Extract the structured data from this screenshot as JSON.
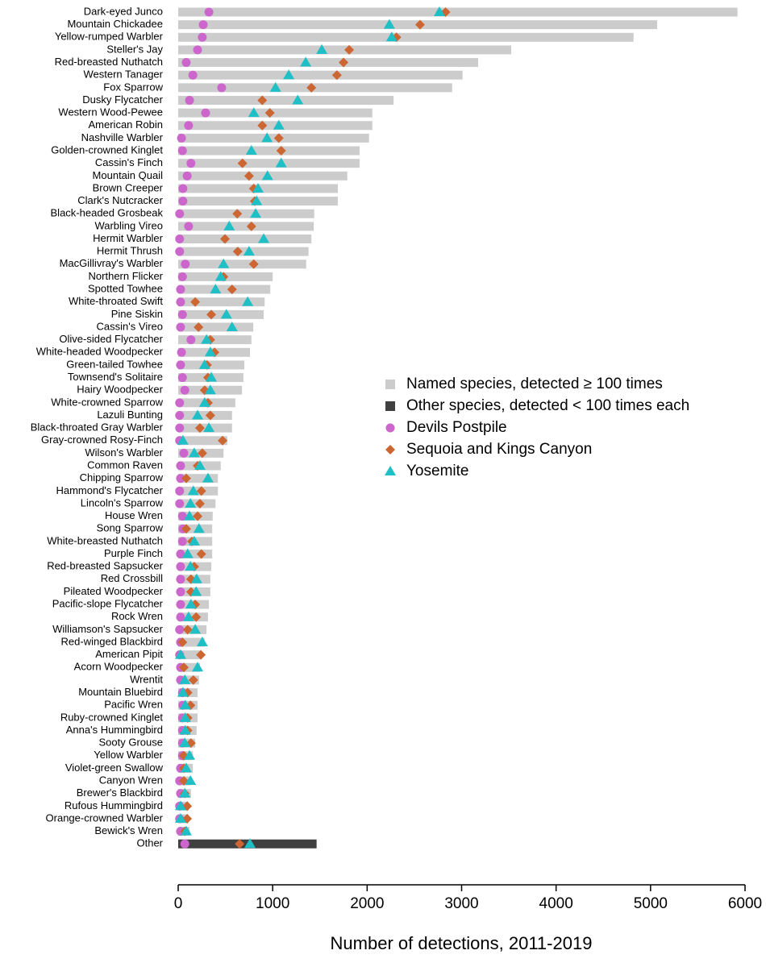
{
  "chart_data": {
    "type": "bar",
    "orientation": "horizontal",
    "xlabel": "Number of detections, 2011-2019",
    "xlim": [
      0,
      6000
    ],
    "xticks": [
      0,
      1000,
      2000,
      3000,
      4000,
      5000,
      6000
    ],
    "categories": [
      "Dark-eyed Junco",
      "Mountain Chickadee",
      "Yellow-rumped Warbler",
      "Steller's Jay",
      "Red-breasted Nuthatch",
      "Western Tanager",
      "Fox Sparrow",
      "Dusky Flycatcher",
      "Western Wood-Pewee",
      "American Robin",
      "Nashville Warbler",
      "Golden-crowned Kinglet",
      "Cassin's Finch",
      "Mountain Quail",
      "Brown Creeper",
      "Clark's Nutcracker",
      "Black-headed Grosbeak",
      "Warbling Vireo",
      "Hermit Warbler",
      "Hermit Thrush",
      "MacGillivray's Warbler",
      "Northern Flicker",
      "Spotted Towhee",
      "White-throated Swift",
      "Pine Siskin",
      "Cassin's Vireo",
      "Olive-sided Flycatcher",
      "White-headed Woodpecker",
      "Green-tailed Towhee",
      "Townsend's Solitaire",
      "Hairy Woodpecker",
      "White-crowned Sparrow",
      "Lazuli Bunting",
      "Black-throated Gray Warbler",
      "Gray-crowned Rosy-Finch",
      "Wilson's Warbler",
      "Common Raven",
      "Chipping Sparrow",
      "Hammond's Flycatcher",
      "Lincoln's Sparrow",
      "House Wren",
      "Song Sparrow",
      "White-breasted Nuthatch",
      "Purple Finch",
      "Red-breasted Sapsucker",
      "Red Crossbill",
      "Pileated Woodpecker",
      "Pacific-slope Flycatcher",
      "Rock Wren",
      "Williamson's Sapsucker",
      "Red-winged Blackbird",
      "American Pipit",
      "Acorn Woodpecker",
      "Wrentit",
      "Mountain Bluebird",
      "Pacific Wren",
      "Ruby-crowned Kinglet",
      "Anna's Hummingbird",
      "Sooty Grouse",
      "Yellow Warbler",
      "Violet-green Swallow",
      "Canyon Wren",
      "Brewer's Blackbird",
      "Rufous Hummingbird",
      "Orange-crowned Warbler",
      "Bewick's Wren",
      "Other"
    ],
    "series": [
      {
        "name": "Named species, detected ≥ 100 times",
        "marker": "bar",
        "color": "#cccccc",
        "values": [
          5920,
          5070,
          4820,
          3525,
          3175,
          3010,
          2900,
          2280,
          2055,
          2055,
          2020,
          1920,
          1920,
          1790,
          1690,
          1690,
          1440,
          1435,
          1410,
          1380,
          1355,
          1000,
          975,
          915,
          905,
          795,
          775,
          760,
          700,
          690,
          675,
          605,
          570,
          570,
          520,
          480,
          450,
          420,
          420,
          395,
          365,
          360,
          360,
          360,
          350,
          340,
          340,
          325,
          315,
          300,
          280,
          245,
          230,
          220,
          205,
          205,
          205,
          195,
          180,
          155,
          155,
          135,
          135,
          110,
          110,
          120,
          null
        ]
      },
      {
        "name": "Other species, detected < 100 times each",
        "marker": "bar",
        "color": "#404040",
        "values": [
          null,
          null,
          null,
          null,
          null,
          null,
          null,
          null,
          null,
          null,
          null,
          null,
          null,
          null,
          null,
          null,
          null,
          null,
          null,
          null,
          null,
          null,
          null,
          null,
          null,
          null,
          null,
          null,
          null,
          null,
          null,
          null,
          null,
          null,
          null,
          null,
          null,
          null,
          null,
          null,
          null,
          null,
          null,
          null,
          null,
          null,
          null,
          null,
          null,
          null,
          null,
          null,
          null,
          null,
          null,
          null,
          null,
          null,
          null,
          null,
          null,
          null,
          null,
          null,
          null,
          null,
          1465
        ]
      },
      {
        "name": "Devils Postpile",
        "marker": "circle",
        "color": "#cc66cc",
        "values": [
          325,
          265,
          255,
          205,
          85,
          155,
          460,
          120,
          290,
          110,
          35,
          45,
          135,
          95,
          50,
          50,
          15,
          110,
          15,
          15,
          75,
          45,
          25,
          25,
          45,
          25,
          135,
          35,
          25,
          45,
          70,
          15,
          15,
          15,
          15,
          60,
          25,
          25,
          15,
          15,
          45,
          50,
          45,
          25,
          25,
          25,
          25,
          25,
          25,
          15,
          25,
          15,
          25,
          25,
          45,
          50,
          45,
          45,
          45,
          45,
          25,
          15,
          25,
          15,
          15,
          25,
          70
        ]
      },
      {
        "name": "Sequoia and Kings Canyon",
        "marker": "diamond",
        "color": "#cc6633",
        "values": [
          2830,
          2560,
          2310,
          1810,
          1750,
          1680,
          1410,
          890,
          970,
          890,
          1065,
          1090,
          680,
          750,
          800,
          810,
          625,
          775,
          495,
          630,
          800,
          480,
          570,
          180,
          350,
          215,
          340,
          385,
          305,
          315,
          280,
          315,
          340,
          230,
          470,
          255,
          205,
          85,
          245,
          230,
          205,
          85,
          145,
          245,
          170,
          135,
          135,
          180,
          190,
          100,
          45,
          240,
          60,
          160,
          100,
          130,
          100,
          100,
          135,
          60,
          60,
          60,
          70,
          95,
          95,
          70,
          650
        ]
      },
      {
        "name": "Yosemite",
        "marker": "triangle",
        "color": "#1fbfc6",
        "values": [
          2765,
          2235,
          2260,
          1520,
          1350,
          1170,
          1030,
          1265,
          800,
          1065,
          940,
          775,
          1090,
          945,
          845,
          830,
          820,
          540,
          905,
          750,
          480,
          450,
          395,
          735,
          510,
          570,
          300,
          340,
          280,
          350,
          340,
          280,
          205,
          325,
          50,
          170,
          230,
          315,
          160,
          130,
          120,
          220,
          170,
          100,
          130,
          195,
          190,
          135,
          110,
          180,
          255,
          25,
          205,
          70,
          50,
          75,
          75,
          75,
          70,
          120,
          85,
          130,
          70,
          25,
          25,
          85,
          760
        ]
      }
    ]
  }
}
